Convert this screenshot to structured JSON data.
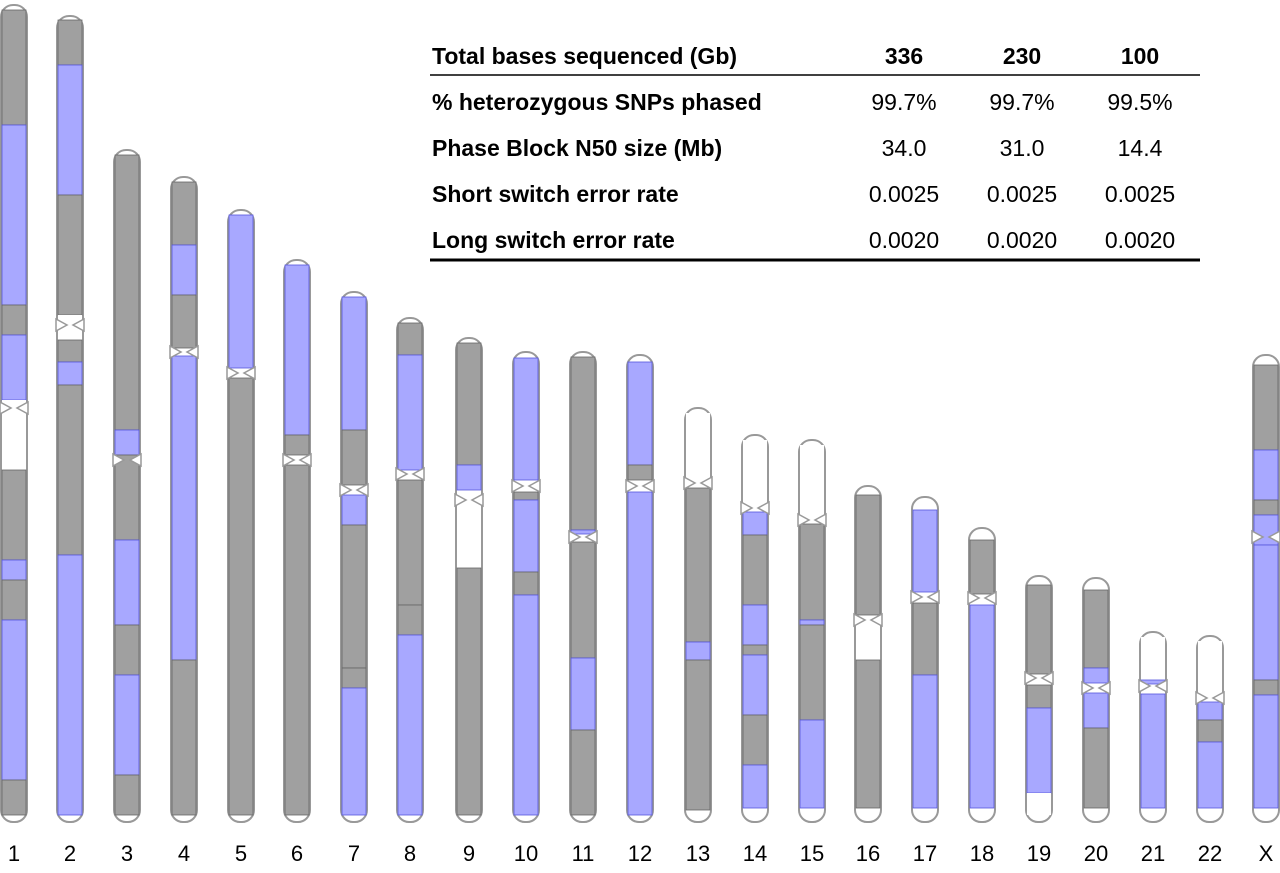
{
  "table": {
    "header": [
      "Total bases sequenced (Gb)",
      "336",
      "230",
      "100"
    ],
    "rows": [
      [
        "% heterozygous SNPs phased",
        "99.7%",
        "99.7%",
        "99.5%"
      ],
      [
        "Phase Block N50 size (Mb)",
        "34.0",
        "31.0",
        "14.4"
      ],
      [
        "Short switch error rate",
        "0.0025",
        "0.0025",
        "0.0025"
      ],
      [
        "Long switch error rate",
        "0.0020",
        "0.0020",
        "0.0020"
      ]
    ]
  },
  "chromosomes": [
    "1",
    "2",
    "3",
    "4",
    "5",
    "6",
    "7",
    "8",
    "9",
    "10",
    "11",
    "12",
    "13",
    "14",
    "15",
    "16",
    "17",
    "18",
    "19",
    "20",
    "21",
    "22",
    "X"
  ]
}
